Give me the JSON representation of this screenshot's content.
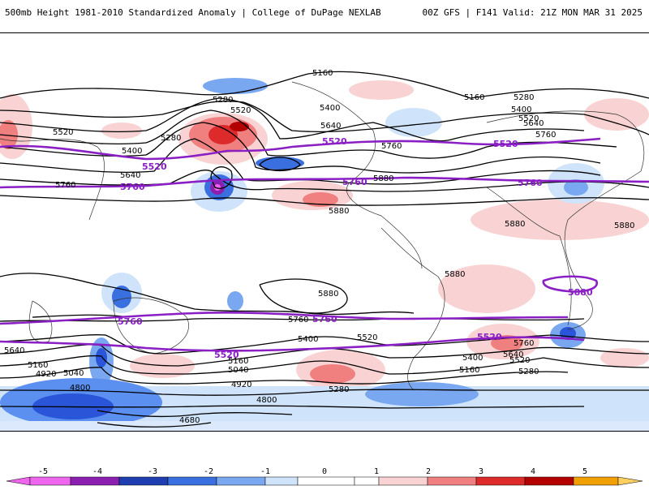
{
  "header": {
    "title": "500mb Height 1981-2010 Standardized Anomaly | College of DuPage NEXLAB",
    "model_valid": "00Z GFS | F141 Valid: 21Z MON MAR 31 2025"
  },
  "map": {
    "contour_labels": [
      "5160",
      "5280",
      "5400",
      "5520",
      "5640",
      "5760",
      "5880",
      "5160",
      "5280",
      "5400",
      "5520",
      "5640",
      "5760",
      "5880",
      "5760",
      "5640",
      "5520",
      "5400",
      "5280",
      "5160",
      "5040",
      "4920",
      "4800",
      "4680",
      "4800",
      "4920",
      "5040",
      "5160",
      "5280",
      "5400",
      "5520",
      "5640",
      "5760",
      "5880",
      "5880",
      "5880",
      "5880",
      "5160",
      "5280",
      "5400",
      "5520",
      "5640",
      "5760"
    ],
    "highlight_labels": [
      "5520",
      "5760",
      "5520",
      "5760",
      "5520",
      "5760",
      "5880",
      "5760",
      "5520",
      "5760",
      "5520"
    ],
    "colors": {
      "positive_light": "#f9d3d3",
      "positive_mid": "#f08080",
      "positive_strong": "#dd2a2a",
      "positive_max": "#b30000",
      "negative_light": "#cfe4fb",
      "negative_mid": "#5b8ff0",
      "negative_strong": "#2a55d8",
      "purple_contour": "#8a1fc4"
    }
  },
  "colorbar": {
    "ticks": [
      "-5",
      "-4",
      "-3",
      "-2",
      "-1",
      "0",
      "1",
      "2",
      "3",
      "4",
      "5"
    ],
    "colors": [
      "#ee66ee",
      "#8a1fb0",
      "#1f3fb0",
      "#3a6fe0",
      "#7aa8f0",
      "#cfe4fb",
      "#ffffff",
      "#ffffff",
      "#f9d3d3",
      "#f08080",
      "#dd2a2a",
      "#b30000",
      "#f0a000",
      "#ffd060"
    ]
  }
}
